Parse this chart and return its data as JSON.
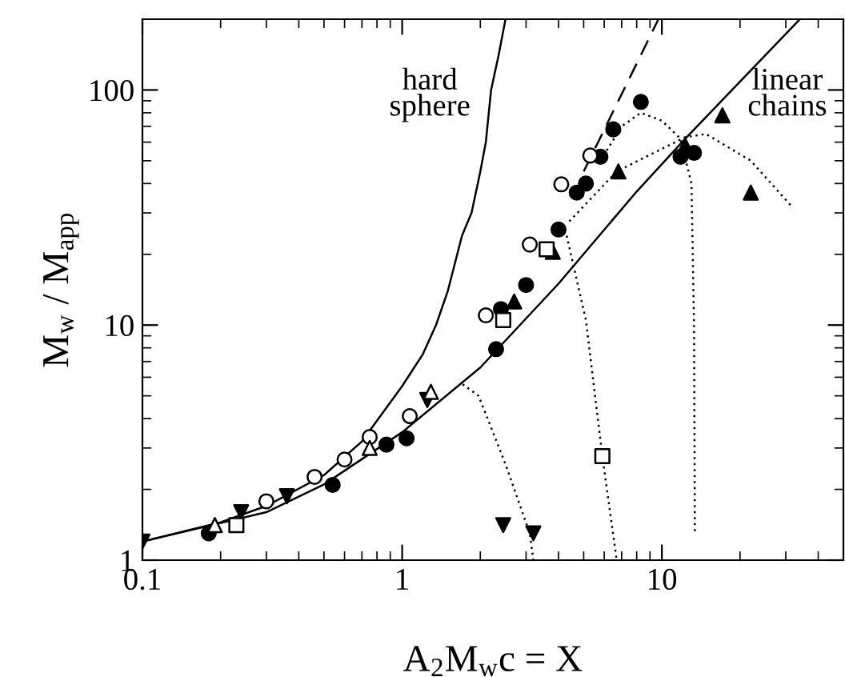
{
  "chart_data": {
    "type": "scatter",
    "xlabel": "A$_{2}$M$_{w}$c = X",
    "ylabel": "M$_{w}$ / M$_{app}$",
    "log": "xy",
    "grid": false,
    "legend": false,
    "xlim": [
      0.1,
      50
    ],
    "ylim": [
      1,
      200
    ],
    "xticks": [
      0.1,
      1,
      10
    ],
    "yticks": [
      1,
      10,
      100
    ],
    "annotations": [
      "hard\nsphere",
      "linear\nchains"
    ],
    "series": [
      {
        "type": "line",
        "line_style": "solid",
        "marker": "none",
        "color": "#000000",
        "x": [
          0.1,
          0.2,
          0.3,
          0.5,
          0.7,
          1,
          1.2,
          1.35,
          1.5,
          1.7,
          1.85,
          2,
          2.1,
          2.2,
          2.35,
          2.5
        ],
        "values": [
          1.2,
          1.45,
          1.7,
          2.3,
          3.2,
          5.5,
          7.5,
          10,
          14,
          24,
          30,
          45,
          60,
          100,
          140,
          200
        ]
      },
      {
        "type": "line",
        "line_style": "solid",
        "marker": "none",
        "color": "#000000",
        "x": [
          0.1,
          0.3,
          0.5,
          1,
          2,
          4,
          8,
          12.3,
          34
        ],
        "values": [
          1.2,
          1.6,
          2.1,
          3.5,
          6.6,
          15,
          37,
          62,
          200
        ]
      },
      {
        "type": "line",
        "line_style": "dashed",
        "marker": "none",
        "color": "#000000",
        "x": [
          5,
          9.7
        ],
        "values": [
          45,
          200
        ]
      },
      {
        "type": "line",
        "line_style": "dotted",
        "marker": "none",
        "color": "#000000",
        "x": [
          1.71,
          1.97,
          2.5,
          3.1,
          3.2
        ],
        "values": [
          5.6,
          5.0,
          2.56,
          1.3,
          1.0
        ]
      },
      {
        "type": "line",
        "line_style": "dotted",
        "marker": "none",
        "color": "#000000",
        "x": [
          4.3,
          5.1,
          5.9,
          6.7
        ],
        "values": [
          24,
          10.5,
          2.77,
          1.0
        ]
      },
      {
        "type": "line",
        "line_style": "dotted",
        "marker": "none",
        "color": "#000000",
        "x": [
          5.8,
          7,
          8.3,
          10,
          11.8,
          13,
          13.3,
          13.4
        ],
        "values": [
          50,
          70,
          80,
          74,
          62,
          40,
          10,
          1.3
        ]
      },
      {
        "type": "line",
        "line_style": "dotted",
        "marker": "none",
        "color": "#000000",
        "x": [
          4.4,
          6.7,
          12.3,
          14.8,
          22,
          31.6
        ],
        "values": [
          27.6,
          45,
          63,
          65,
          50,
          32
        ]
      },
      {
        "marker": "circle",
        "color": "#000000",
        "x": [
          0.18,
          0.54,
          0.87,
          1.04,
          2.3,
          2.4,
          3.0,
          4.0,
          4.7,
          5.1,
          5.8,
          6.5,
          8.3,
          11.8,
          13.3
        ],
        "values": [
          1.3,
          2.09,
          3.1,
          3.3,
          7.9,
          11.7,
          14.8,
          25.5,
          36.6,
          40,
          52,
          68,
          89,
          52,
          54
        ]
      },
      {
        "marker": "circle_open",
        "color": "#000000",
        "x": [
          0.3,
          0.46,
          0.6,
          0.75,
          1.07,
          2.1,
          3.1,
          4.1,
          5.3
        ],
        "values": [
          1.78,
          2.26,
          2.68,
          3.34,
          4.1,
          11,
          22,
          39.7,
          52.6
        ]
      },
      {
        "marker": "triangle",
        "color": "#000000",
        "x": [
          2.7,
          3.8,
          6.8,
          12.3,
          17.1,
          22
        ],
        "values": [
          12.6,
          20.5,
          45,
          58,
          78,
          36.6
        ]
      },
      {
        "marker": "triangle_down",
        "color": "#000000",
        "x": [
          0.1,
          0.24,
          0.36,
          1.25,
          2.45,
          3.2
        ],
        "values": [
          1.2,
          1.6,
          1.87,
          4.8,
          1.41,
          1.3
        ]
      },
      {
        "marker": "square_open",
        "color": "#000000",
        "x": [
          0.23,
          2.45,
          3.6,
          5.9
        ],
        "values": [
          1.41,
          10.5,
          21,
          2.77
        ]
      },
      {
        "marker": "triangle_open",
        "color": "#000000",
        "x": [
          0.19,
          0.75,
          1.29
        ],
        "values": [
          1.41,
          3.0,
          5.2
        ]
      }
    ]
  }
}
